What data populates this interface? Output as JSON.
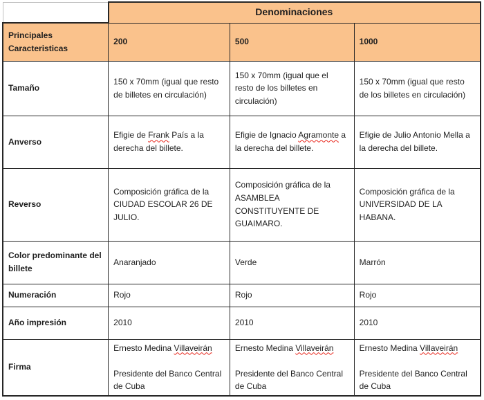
{
  "colors": {
    "header_fill": "#fac28c",
    "border": "#262626",
    "corner_border": "#bfbfbf",
    "text": "#1f1f1f",
    "spellcheck_underline": "#e8261c",
    "background": "#ffffff"
  },
  "table": {
    "title": "Denominaciones",
    "corner_label": "Principales Caracteristicas",
    "denominations": [
      "200",
      "500",
      "1000"
    ],
    "rows": [
      {
        "label": "Tamaño",
        "cells": [
          "150 x 70mm (igual que resto de billetes en circulación)",
          "150 x 70mm (igual que el resto de los billetes en circulación)",
          "150 x 70mm (igual que resto de los billetes en circulación)"
        ]
      },
      {
        "label": "Anverso",
        "cells": [
          "Efigie de Frank País a la derecha del billete.",
          "Efigie de Ignacio Agramonte a la derecha del billete.",
          "Efigie de Julio Antonio Mella a la derecha del billete."
        ]
      },
      {
        "label": "Reverso",
        "cells": [
          "Composición gráfica de la CIUDAD ESCOLAR 26 DE JULIO.",
          "Composición gráfica de la ASAMBLEA CONSTITUYENTE DE GUAIMARO.",
          "Composición gráfica de la UNIVERSIDAD DE LA HABANA."
        ]
      },
      {
        "label": "Color predominante del billete",
        "cells": [
          "Anaranjado",
          "Verde",
          "Marrón"
        ]
      },
      {
        "label": "Numeración",
        "cells": [
          "Rojo",
          "Rojo",
          "Rojo"
        ]
      },
      {
        "label": "Año impresión",
        "cells": [
          "2010",
          "2010",
          "2010"
        ]
      },
      {
        "label": "Firma",
        "cells": [
          "Ernesto Medina Villaveirán\n\nPresidente del Banco Central de Cuba",
          "Ernesto Medina Villaveirán\n\nPresidente del Banco Central de Cuba",
          "Ernesto Medina Villaveirán\n\nPresidente del Banco Central de Cuba"
        ]
      }
    ]
  },
  "spellcheck_words": [
    "Frank",
    "Agramonte",
    "Villaveirán"
  ]
}
